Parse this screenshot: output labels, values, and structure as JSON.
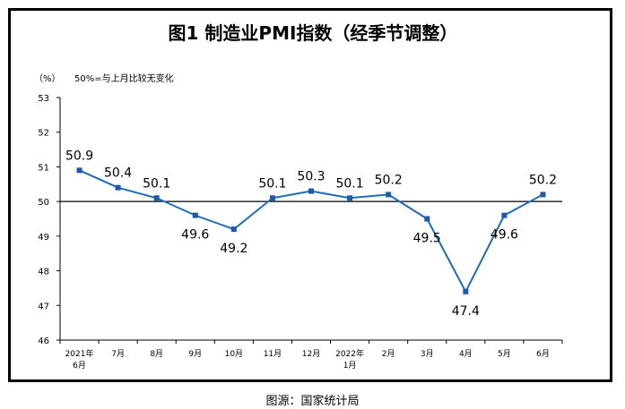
{
  "chart_data": {
    "type": "line",
    "title": "图1 制造业PMI指数（经季节调整）",
    "ylabel": "（%）",
    "annotation": "50%=与上月比较无变化",
    "categories": [
      [
        "2021年",
        "6月"
      ],
      [
        "7月"
      ],
      [
        "8月"
      ],
      [
        "9月"
      ],
      [
        "10月"
      ],
      [
        "11月"
      ],
      [
        "12月"
      ],
      [
        "2022年",
        "1月"
      ],
      [
        "2月"
      ],
      [
        "3月"
      ],
      [
        "4月"
      ],
      [
        "5月"
      ],
      [
        "6月"
      ]
    ],
    "values": [
      50.9,
      50.4,
      50.1,
      49.6,
      49.2,
      50.1,
      50.3,
      50.1,
      50.2,
      49.5,
      47.4,
      49.6,
      50.2
    ],
    "data_labels": [
      "50.9",
      "50.4",
      "50.1",
      "49.6",
      "49.2",
      "50.1",
      "50.3",
      "50.1",
      "50.2",
      "49.5",
      "47.4",
      "49.6",
      "50.2"
    ],
    "label_positions": [
      "above",
      "above",
      "above",
      "below",
      "below",
      "above",
      "above",
      "above",
      "above",
      "below",
      "below",
      "below",
      "above"
    ],
    "ylim": [
      46,
      53
    ],
    "yticks": [
      "46",
      "47",
      "48",
      "49",
      "50",
      "51",
      "52",
      "53"
    ],
    "reference_line": 50,
    "grid": false,
    "line_color": "#1f6bb5",
    "marker_color": "#1f5aa8"
  },
  "source": "图源：国家统计局"
}
